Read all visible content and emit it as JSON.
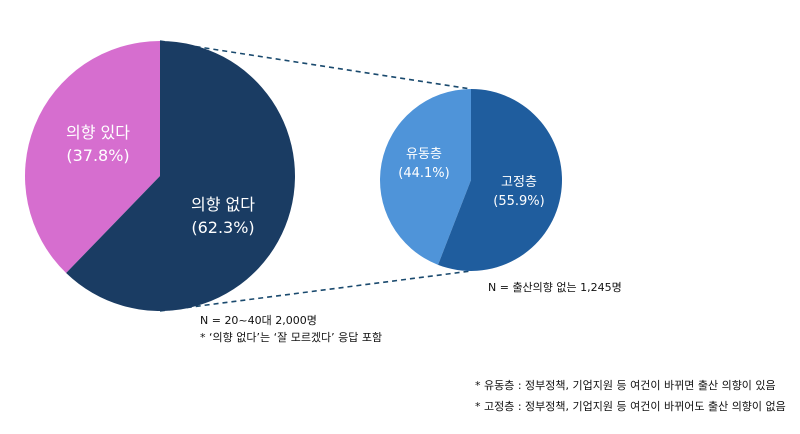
{
  "chart_data": [
    {
      "type": "pie",
      "slices": [
        {
          "label": "의향 있다",
          "value": 37.8,
          "value_label": "(37.8%)",
          "color": "#D66ECF"
        },
        {
          "label": "의향 없다",
          "value": 62.3,
          "value_label": "(62.3%)",
          "color": "#1A3C63"
        }
      ],
      "note": "N = 20~40대 2,000명",
      "footnote": "* ‘의향 없다’는 ‘잘 모르겠다’ 응답 포함"
    },
    {
      "type": "pie",
      "slices": [
        {
          "label": "유동층",
          "value": 44.1,
          "value_label": "(44.1%)",
          "color": "#4F94D9"
        },
        {
          "label": "고정층",
          "value": 55.9,
          "value_label": "(55.9%)",
          "color": "#1F5D9E"
        }
      ],
      "note": "N = 출산의향 없는 1,245명"
    }
  ],
  "legend": [
    "* 유동층 : 정부정책, 기업지원 등 여건이 바뀌면 출산 의향이 있음",
    "* 고정층 : 정부정책, 기업지원 등 여건이 바뀌어도 출산 의향이 없음"
  ],
  "colors": {
    "connector": "#1A4A6E",
    "label_text": "#ffffff"
  }
}
